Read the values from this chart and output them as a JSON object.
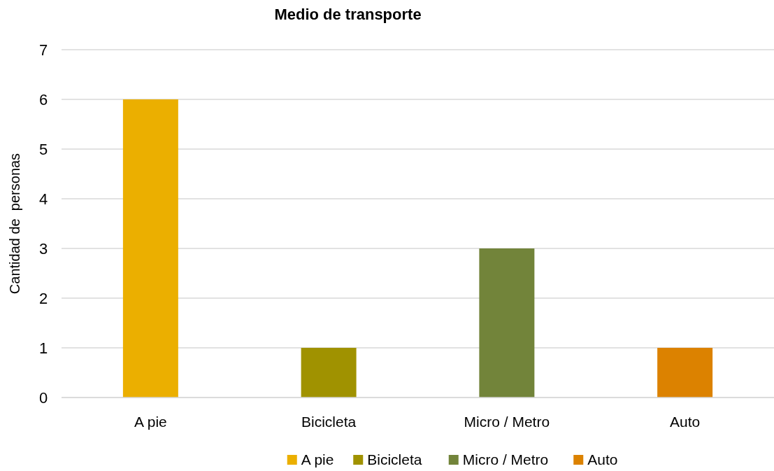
{
  "chart_data": {
    "type": "bar",
    "title": "Medio de transporte",
    "ylabel": "Cantidad de  personas",
    "categories": [
      "A pie",
      "Bicicleta",
      "Micro / Metro",
      "Auto"
    ],
    "stacked": true,
    "series": [
      {
        "name": "A pie",
        "color": "#ebaf00",
        "values": [
          6,
          null,
          null,
          null
        ]
      },
      {
        "name": "Bicicleta",
        "color": "#a09200",
        "values": [
          null,
          1,
          null,
          null
        ]
      },
      {
        "name": "Micro / Metro",
        "color": "#72843a",
        "values": [
          null,
          null,
          3,
          null
        ]
      },
      {
        "name": "Auto",
        "color": "#dc8200",
        "values": [
          null,
          null,
          null,
          1
        ]
      }
    ],
    "ylim": [
      0,
      7
    ],
    "yticks": [
      0,
      1,
      2,
      3,
      4,
      5,
      6,
      7
    ],
    "grid": "y",
    "legend": "bottom"
  }
}
